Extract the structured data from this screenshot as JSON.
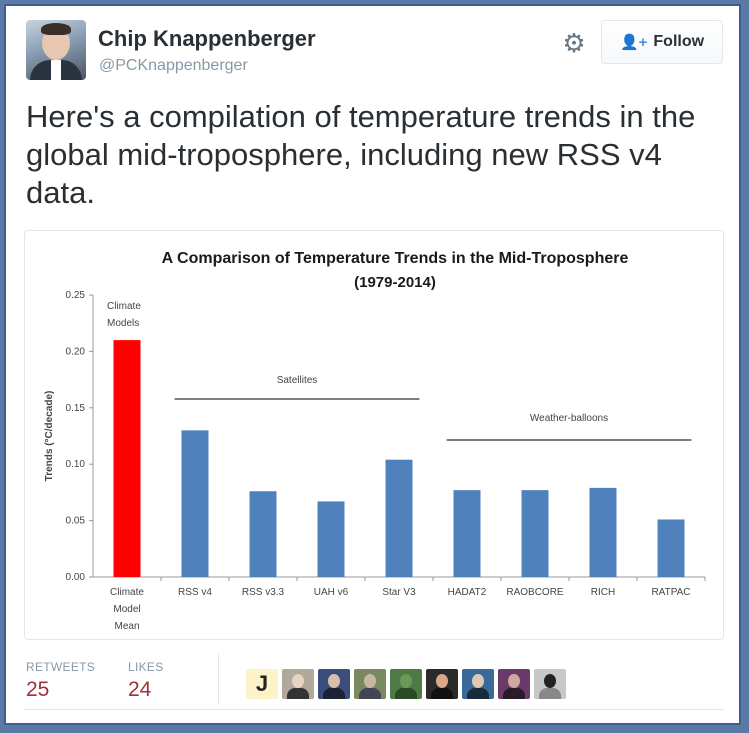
{
  "tweet": {
    "author_name": "Chip Knappenberger",
    "author_handle": "@PCKnappenberger",
    "follow_label": "Follow",
    "text": "Here's a compilation of temperature trends in the global mid-troposphere, including new RSS v4 data."
  },
  "stats": {
    "retweets_label": "RETWEETS",
    "retweets_count": "25",
    "likes_label": "LIKES",
    "likes_count": "24"
  },
  "likers": [
    {
      "name": "J",
      "colors": [
        "#fdf3c9"
      ]
    },
    {
      "name": "",
      "colors": [
        "#b0a89a",
        "#e8d2c0",
        "#333"
      ]
    },
    {
      "name": "",
      "colors": [
        "#3b4d7a",
        "#d8c0a8",
        "#1c2233"
      ]
    },
    {
      "name": "",
      "colors": [
        "#7a8a60",
        "#c8b8a0",
        "#445"
      ]
    },
    {
      "name": "",
      "colors": [
        "#4d7a45",
        "#6a9a58",
        "#2a4a28"
      ]
    },
    {
      "name": "",
      "colors": [
        "#2a2a2a",
        "#d9a88a",
        "#111"
      ]
    },
    {
      "name": "",
      "colors": [
        "#3a6a9a",
        "#e2c8b0",
        "#1a2a3a"
      ]
    },
    {
      "name": "",
      "colors": [
        "#6a3a6a",
        "#d0a8a0",
        "#2a1a2a"
      ]
    },
    {
      "name": "",
      "colors": [
        "#c8c8c8",
        "#222",
        "#888"
      ]
    }
  ],
  "chart_data": {
    "type": "bar",
    "title": "A Comparison  of Temperature Trends in the Mid-Troposphere",
    "subtitle": "(1979-2014)",
    "ylabel": "Trends (°C/decade)",
    "xlabel": "",
    "ylim": [
      0,
      0.25
    ],
    "yticks": [
      "0.00",
      "0.05",
      "0.10",
      "0.15",
      "0.20",
      "0.25"
    ],
    "categories": [
      "Climate Model Mean",
      "RSS v4",
      "RSS v3.3",
      "UAH v6",
      "Star V3",
      "HADAT2",
      "RAOBCORE",
      "RICH",
      "RATPAC"
    ],
    "category_lines": [
      [
        "Climate",
        "Model",
        "Mean"
      ],
      [
        "RSS v4"
      ],
      [
        "RSS v3.3"
      ],
      [
        "UAH v6"
      ],
      [
        "Star V3"
      ],
      [
        "HADAT2"
      ],
      [
        "RAOBCORE"
      ],
      [
        "RICH"
      ],
      [
        "RATPAC"
      ]
    ],
    "values": [
      0.21,
      0.13,
      0.076,
      0.067,
      0.104,
      0.077,
      0.077,
      0.079,
      0.051
    ],
    "bar_colors": [
      "#ff0000",
      "#4f81bd",
      "#4f81bd",
      "#4f81bd",
      "#4f81bd",
      "#4f81bd",
      "#4f81bd",
      "#4f81bd",
      "#4f81bd"
    ],
    "annotations": {
      "models": [
        "Climate",
        "Models"
      ],
      "satellites": "Satellites",
      "balloons": "Weather-balloons"
    },
    "grid": false
  }
}
